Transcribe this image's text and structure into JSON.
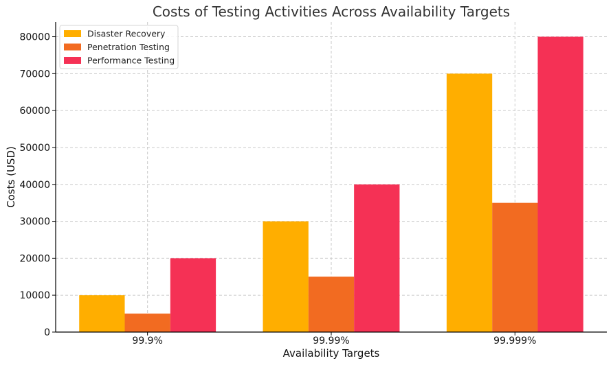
{
  "chart_data": {
    "type": "bar",
    "title": "Costs of Testing Activities Across Availability Targets",
    "xlabel": "Availability Targets",
    "ylabel": "Costs (USD)",
    "categories": [
      "99.9%",
      "99.99%",
      "99.999%"
    ],
    "ylim": [
      0,
      84000
    ],
    "yticks": [
      0,
      10000,
      20000,
      30000,
      40000,
      50000,
      60000,
      70000,
      80000
    ],
    "grid": true,
    "legend_position": "top-left",
    "series": [
      {
        "name": "Disaster Recovery",
        "color": "#ffae00",
        "values": [
          10000,
          30000,
          70000
        ]
      },
      {
        "name": "Penetration Testing",
        "color": "#f26b21",
        "values": [
          5000,
          15000,
          35000
        ]
      },
      {
        "name": "Performance Testing",
        "color": "#f53155",
        "values": [
          20000,
          40000,
          80000
        ]
      }
    ]
  }
}
